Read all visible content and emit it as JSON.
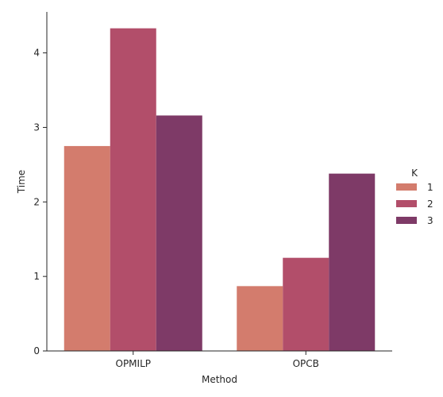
{
  "chart_data": {
    "type": "bar",
    "categories": [
      "OPMILP",
      "OPCB"
    ],
    "series": [
      {
        "name": "1",
        "values": [
          2.75,
          0.87
        ]
      },
      {
        "name": "2",
        "values": [
          4.33,
          1.25
        ]
      },
      {
        "name": "3",
        "values": [
          3.16,
          2.38
        ]
      }
    ],
    "xlabel": "Method",
    "ylabel": "Time",
    "ylim": [
      0,
      4.55
    ],
    "yticks": [
      0,
      1,
      2,
      3,
      4
    ],
    "legend": {
      "title": "K",
      "placement": "right"
    },
    "grid": false,
    "colors": [
      "#d37c6d",
      "#b24e6a",
      "#7e3a67"
    ]
  }
}
